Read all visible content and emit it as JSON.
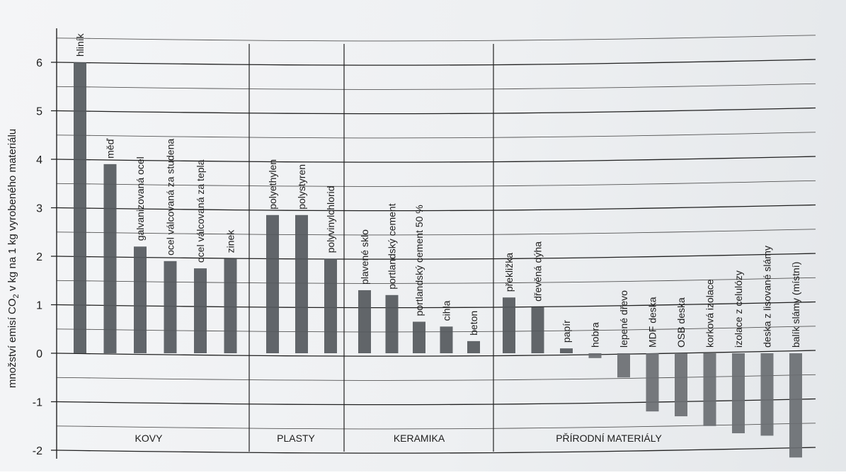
{
  "chart_data": {
    "type": "bar",
    "ylabel_main": "množství emisí CO",
    "ylabel_sub": "2",
    "ylabel_rest": " v kg na 1 kg vyrobeného materiálu",
    "ylim": [
      -2.2,
      6.6
    ],
    "yticks": [
      "-2",
      "-1",
      "0",
      "1",
      "2",
      "3",
      "4",
      "5",
      "6"
    ],
    "grid": true,
    "groups": [
      {
        "name": "KOVY",
        "count": 6
      },
      {
        "name": "PLASTY",
        "count": 3
      },
      {
        "name": "KERAMIKA",
        "count": 5
      },
      {
        "name": "PŘÍRODNÍ MATERIÁLY",
        "count": 11
      }
    ],
    "categories": [
      "hliník",
      "měď",
      "galvanizovaná ocel",
      "ocel válcovaná za studena",
      "ocel válcovaná za tepla",
      "zinek",
      "polyethylen",
      "polystyren",
      "polyvinylchlorid",
      "plavené sklo",
      "portlandský cement",
      "portlandský cement 50 %",
      "cihla",
      "beton",
      "překližka",
      "dřevěná dýha",
      "papír",
      "hobra",
      "lepené dřevo",
      "MDF deska",
      "OSB deska",
      "korková izolace",
      "izolace z celulózy",
      "deska z lisované slámy",
      "balík slámy (místní)"
    ],
    "values": [
      6.0,
      3.9,
      2.2,
      1.9,
      1.75,
      1.95,
      2.85,
      2.85,
      1.95,
      1.3,
      1.2,
      0.65,
      0.55,
      0.25,
      1.15,
      0.95,
      0.1,
      -0.1,
      -0.5,
      -1.2,
      -1.3,
      -1.5,
      -1.65,
      -1.7,
      -2.15
    ],
    "bar_color": "#5b6064"
  }
}
